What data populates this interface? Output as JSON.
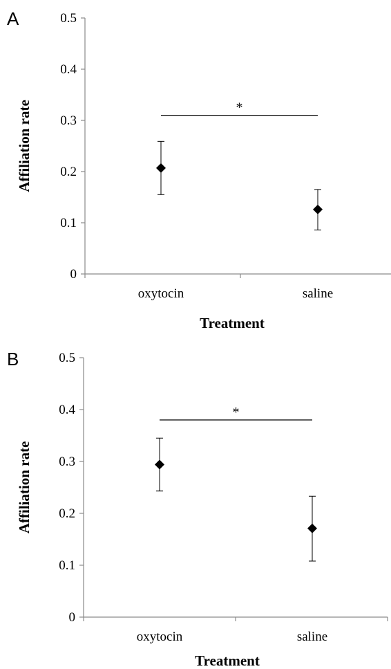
{
  "chart_data": [
    {
      "type": "scatter",
      "panel_label": "A",
      "categories": [
        "oxytocin",
        "saline"
      ],
      "values": [
        0.207,
        0.126
      ],
      "error_low": [
        0.155,
        0.086
      ],
      "error_high": [
        0.259,
        0.165
      ],
      "xlabel": "Treatment",
      "ylabel": "Affiliation rate",
      "ylim": [
        0,
        0.5
      ],
      "yticks": [
        0,
        0.1,
        0.2,
        0.3,
        0.4,
        0.5
      ],
      "ytick_labels": [
        "0",
        "0.1",
        "0.2",
        "0.3",
        "0.4",
        "0.5"
      ],
      "significance": {
        "value": 0.31,
        "label": "*"
      },
      "grid": false,
      "legend": "none"
    },
    {
      "type": "scatter",
      "panel_label": "B",
      "categories": [
        "oxytocin",
        "saline"
      ],
      "values": [
        0.294,
        0.171
      ],
      "error_low": [
        0.243,
        0.108
      ],
      "error_high": [
        0.345,
        0.233
      ],
      "xlabel": "Treatment",
      "ylabel": "Affiliation rate",
      "ylim": [
        0,
        0.5
      ],
      "yticks": [
        0,
        0.1,
        0.2,
        0.3,
        0.4,
        0.5
      ],
      "ytick_labels": [
        "0",
        "0.1",
        "0.2",
        "0.3",
        "0.4",
        "0.5"
      ],
      "significance": {
        "value": 0.38,
        "label": "*"
      },
      "grid": false,
      "legend": "none"
    }
  ]
}
